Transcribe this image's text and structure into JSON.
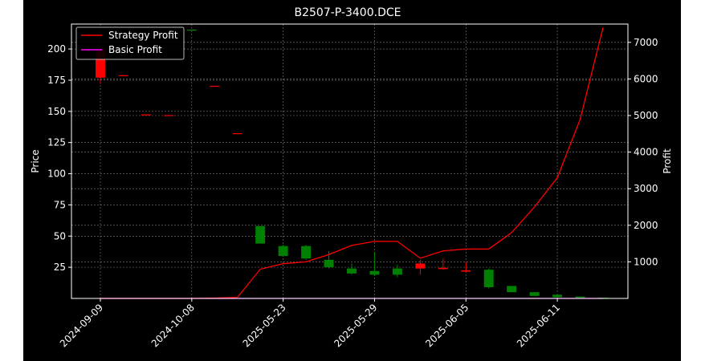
{
  "chart_data": {
    "type": "candlestick",
    "title": "B2507-P-3400.DCE",
    "xlabel": "",
    "ylabel_left": "Price",
    "ylabel_right": "Profit",
    "ylim_left": [
      0,
      220
    ],
    "ylim_right": [
      0,
      7500
    ],
    "left_ticks": [
      25,
      50,
      75,
      100,
      125,
      150,
      175,
      200
    ],
    "right_ticks": [
      1000,
      2000,
      3000,
      4000,
      5000,
      6000,
      7000
    ],
    "x_tick_labels": [
      {
        "index": 0,
        "label": "2024-09-09"
      },
      {
        "index": 4,
        "label": "2024-10-08"
      },
      {
        "index": 8,
        "label": "2025-05-23"
      },
      {
        "index": 12,
        "label": "2025-05-29"
      },
      {
        "index": 16,
        "label": "2025-06-05"
      },
      {
        "index": 20,
        "label": "2025-06-11"
      }
    ],
    "grid": true,
    "legend_position": "top-left",
    "up_color": "#008000",
    "down_color": "#ff0000",
    "strategy_color": "#ff0000",
    "basic_color": "#ff00ff",
    "candles": [
      {
        "open": 200,
        "close": 177,
        "high": 200,
        "low": 172
      },
      {
        "open": 179,
        "close": 178.5,
        "high": 179,
        "low": 178.5
      },
      {
        "open": 147.5,
        "close": 147,
        "high": 147.5,
        "low": 147
      },
      {
        "open": 147,
        "close": 146.5,
        "high": 147,
        "low": 146.5
      },
      {
        "open": 215,
        "close": 215.5,
        "high": 215.5,
        "low": 215
      },
      {
        "open": 170.5,
        "close": 170,
        "high": 170.5,
        "low": 170
      },
      {
        "open": 132.5,
        "close": 132,
        "high": 132.5,
        "low": 132
      },
      {
        "open": 44,
        "close": 58,
        "high": 58,
        "low": 44
      },
      {
        "open": 34,
        "close": 42,
        "high": 43,
        "low": 34
      },
      {
        "open": 32,
        "close": 42,
        "high": 43,
        "low": 31
      },
      {
        "open": 25,
        "close": 31,
        "high": 38,
        "low": 24
      },
      {
        "open": 20,
        "close": 24,
        "high": 28,
        "low": 19
      },
      {
        "open": 19,
        "close": 22,
        "high": 37,
        "low": 18
      },
      {
        "open": 19,
        "close": 24,
        "high": 27,
        "low": 17
      },
      {
        "open": 28,
        "close": 24,
        "high": 31,
        "low": 19
      },
      {
        "open": 24.5,
        "close": 23.5,
        "high": 32,
        "low": 23
      },
      {
        "open": 22.5,
        "close": 21.5,
        "high": 29,
        "low": 21
      },
      {
        "open": 9,
        "close": 23,
        "high": 24,
        "low": 8
      },
      {
        "open": 5,
        "close": 10,
        "high": 10,
        "low": 5
      },
      {
        "open": 2,
        "close": 5,
        "high": 5,
        "low": 2
      },
      {
        "open": 1,
        "close": 3,
        "high": 3,
        "low": 1
      },
      {
        "open": 0.5,
        "close": 1.5,
        "high": 1.5,
        "low": 0.5
      },
      {
        "open": 0.3,
        "close": 0.6,
        "high": 0.6,
        "low": 0.3
      }
    ],
    "series": [
      {
        "name": "Strategy Profit",
        "values": [
          0,
          0,
          0,
          0,
          0,
          10,
          30,
          800,
          950,
          1000,
          1200,
          1450,
          1560,
          1560,
          1100,
          1300,
          1350,
          1350,
          1800,
          2500,
          3300,
          4900,
          7400
        ]
      },
      {
        "name": "Basic Profit",
        "values": [
          0,
          0,
          0,
          0,
          0,
          0,
          0,
          0,
          0,
          0,
          0,
          0,
          0,
          0,
          0,
          0,
          0,
          0,
          0,
          0,
          0,
          0,
          0
        ]
      }
    ]
  }
}
